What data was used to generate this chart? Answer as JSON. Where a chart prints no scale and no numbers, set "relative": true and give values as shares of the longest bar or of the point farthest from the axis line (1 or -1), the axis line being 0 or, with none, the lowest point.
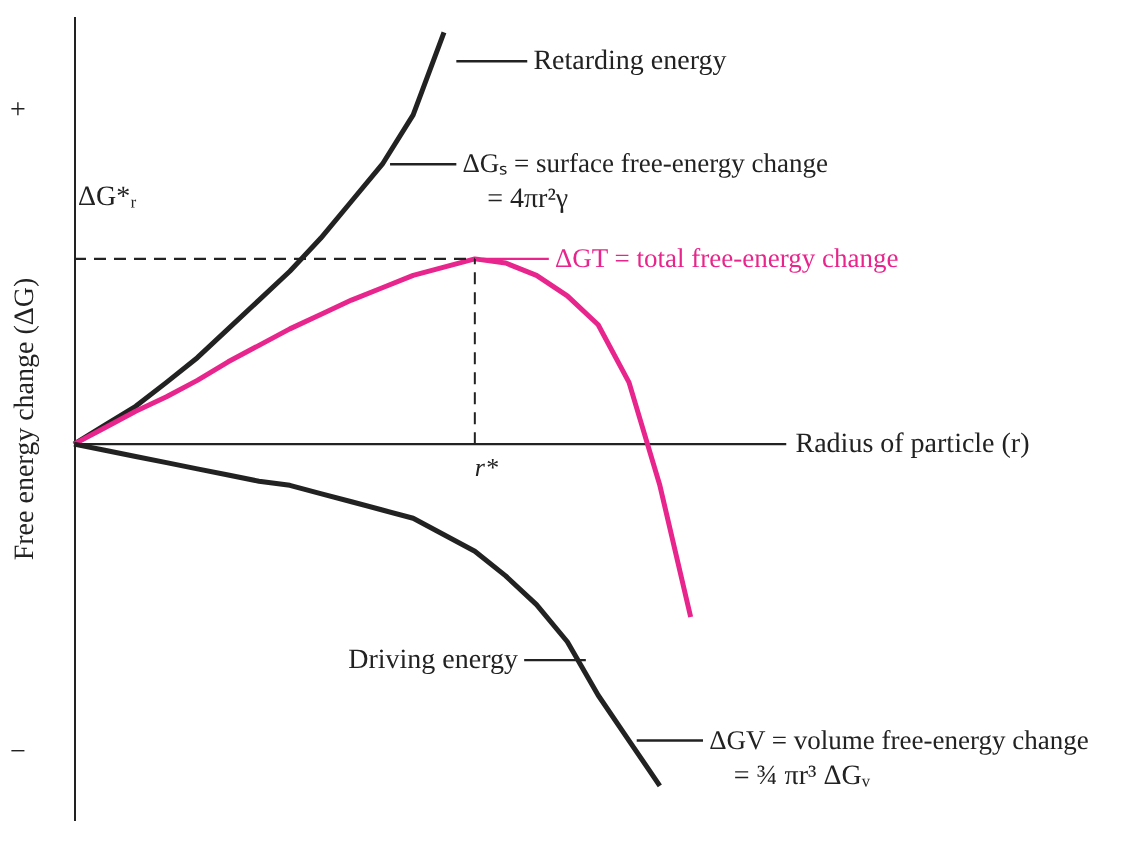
{
  "chart_data": {
    "type": "line",
    "relative": true,
    "xlabel": "Radius of particle (r)",
    "ylabel": "Free energy change (ΔG)",
    "categories": [
      null,
      null,
      null,
      null,
      null,
      null,
      null,
      null,
      null,
      null,
      null,
      null,
      null,
      null,
      null,
      null,
      null,
      null,
      null,
      null,
      null
    ],
    "series": [
      {
        "name": "ΔGₛ = surface free-energy change",
        "color": "#222222",
        "values": [
          0,
          0.046,
          0.092,
          0.15,
          0.21,
          0.28,
          0.35,
          0.42,
          0.5,
          0.59,
          0.68,
          0.8,
          1.0,
          null,
          null,
          null,
          null,
          null,
          null,
          null,
          null
        ]
      },
      {
        "name": "ΔGT = total free-energy change",
        "color": "#e8258c",
        "values": [
          0,
          0.04,
          0.08,
          0.115,
          0.155,
          0.2,
          0.24,
          0.28,
          0.315,
          0.35,
          0.38,
          0.41,
          0.43,
          0.45,
          0.44,
          0.41,
          0.36,
          0.29,
          0.15,
          -0.1,
          -0.42
        ]
      },
      {
        "name": "ΔGV = volume free-energy change",
        "color": "#222222",
        "values": [
          0,
          -0.015,
          -0.03,
          -0.045,
          -0.06,
          -0.075,
          -0.09,
          -0.1,
          -0.12,
          -0.14,
          -0.16,
          -0.18,
          -0.22,
          -0.26,
          -0.32,
          -0.39,
          -0.48,
          -0.61,
          -0.72,
          -0.83,
          null
        ]
      }
    ],
    "ref_lines": [
      {
        "axis": "y",
        "value": 0.45,
        "label": "ΔG*ᵣ",
        "line_style": "dashed",
        "color": "#222222"
      }
    ],
    "annotations": [
      "Retarding energy",
      "Driving energy",
      "= 4πr²γ",
      "= ¾ πr³ ΔGᵥ",
      "+",
      "−",
      "r*"
    ],
    "marker": "none",
    "line_style": "solid",
    "grid": false,
    "legend": "right"
  }
}
